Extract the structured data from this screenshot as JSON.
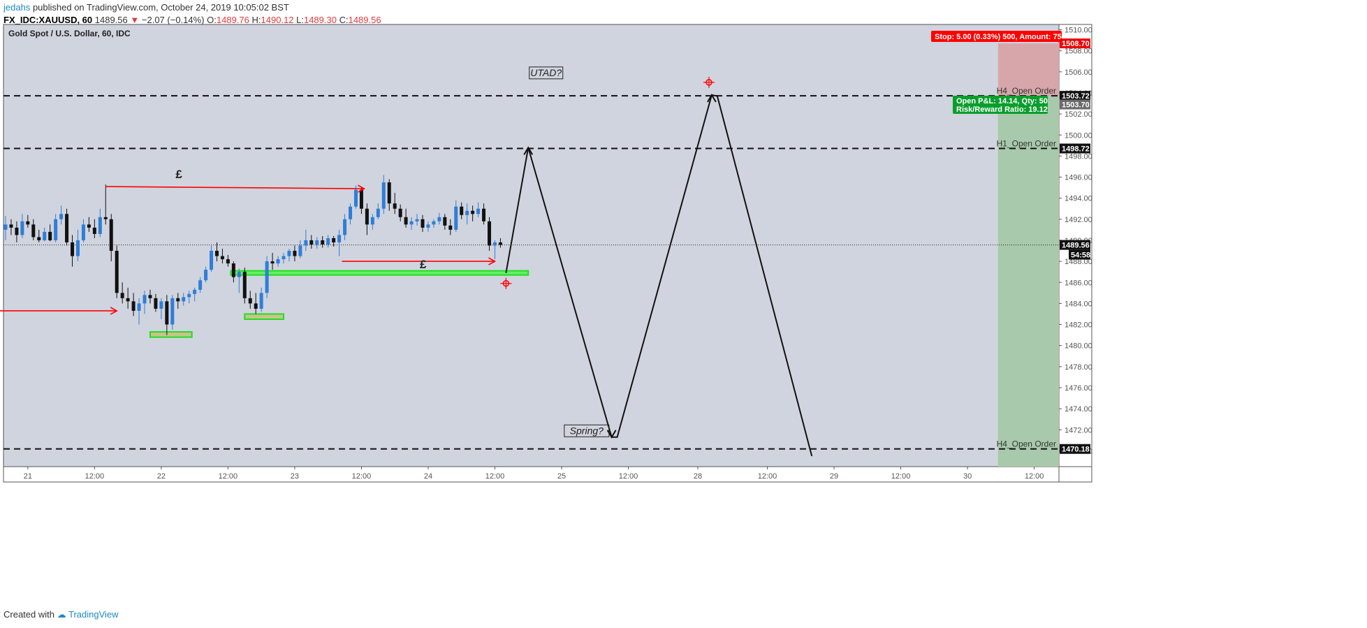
{
  "header": {
    "author": "jedahs",
    "published": "published on TradingView.com, October 24, 2019 10:05:02 BST",
    "ticker": "FX_IDC:XAUUSD, 60",
    "price": "1489.56",
    "change_arrow": "▼",
    "change": "−2.07 (−0.14%)",
    "o_label": "O:",
    "o_value": "1489.76",
    "h_label": "H:",
    "h_value": "1490.12",
    "l_label": "L:",
    "l_value": "1489.30",
    "c_label": "C:",
    "c_value": "1489.56"
  },
  "footer": {
    "created_with": "Created with",
    "brand": "TradingView"
  },
  "chart_data": {
    "type": "candlestick",
    "title": "Gold Spot / U.S. Dollar, 60, IDC",
    "y_range": [
      1468.5,
      1510.5
    ],
    "y_ticks": [
      "1510.00",
      "1508.00",
      "1506.00",
      "1504.00",
      "1502.00",
      "1500.00",
      "1498.00",
      "1496.00",
      "1494.00",
      "1492.00",
      "1490.00",
      "1488.00",
      "1486.00",
      "1484.00",
      "1482.00",
      "1480.00",
      "1478.00",
      "1476.00",
      "1474.00",
      "1472.00",
      "1470.00"
    ],
    "x_ticks": [
      {
        "label": "21",
        "slot": 4
      },
      {
        "label": "12:00",
        "slot": 16
      },
      {
        "label": "22",
        "slot": 28
      },
      {
        "label": "12:00",
        "slot": 40
      },
      {
        "label": "23",
        "slot": 52
      },
      {
        "label": "12:00",
        "slot": 64
      },
      {
        "label": "24",
        "slot": 76
      },
      {
        "label": "12:00",
        "slot": 88
      },
      {
        "label": "25",
        "slot": 100
      },
      {
        "label": "12:00",
        "slot": 112
      },
      {
        "label": "28",
        "slot": 124.5
      },
      {
        "label": "12:00",
        "slot": 137
      },
      {
        "label": "29",
        "slot": 149
      },
      {
        "label": "12:00",
        "slot": 161
      },
      {
        "label": "30",
        "slot": 173
      },
      {
        "label": "12:00",
        "slot": 185
      }
    ],
    "candles": [
      {
        "o": 1491.0,
        "h": 1492.3,
        "l": 1490.0,
        "c": 1491.5
      },
      {
        "o": 1491.5,
        "h": 1492.0,
        "l": 1490.5,
        "c": 1491.2
      },
      {
        "o": 1491.2,
        "h": 1491.8,
        "l": 1489.8,
        "c": 1490.5
      },
      {
        "o": 1490.5,
        "h": 1492.5,
        "l": 1490.2,
        "c": 1491.8
      },
      {
        "o": 1491.8,
        "h": 1492.4,
        "l": 1491.2,
        "c": 1491.5
      },
      {
        "o": 1491.5,
        "h": 1492.0,
        "l": 1490.0,
        "c": 1490.3
      },
      {
        "o": 1490.3,
        "h": 1491.0,
        "l": 1489.8,
        "c": 1490.0
      },
      {
        "o": 1490.0,
        "h": 1491.2,
        "l": 1489.9,
        "c": 1490.8
      },
      {
        "o": 1490.8,
        "h": 1491.5,
        "l": 1489.9,
        "c": 1490.0
      },
      {
        "o": 1490.0,
        "h": 1492.5,
        "l": 1489.8,
        "c": 1492.0
      },
      {
        "o": 1492.0,
        "h": 1493.3,
        "l": 1491.5,
        "c": 1492.5
      },
      {
        "o": 1492.5,
        "h": 1493.0,
        "l": 1489.5,
        "c": 1489.8
      },
      {
        "o": 1489.8,
        "h": 1490.5,
        "l": 1487.5,
        "c": 1488.5
      },
      {
        "o": 1488.5,
        "h": 1491.0,
        "l": 1488.0,
        "c": 1490.0
      },
      {
        "o": 1490.0,
        "h": 1492.0,
        "l": 1489.8,
        "c": 1491.5
      },
      {
        "o": 1491.5,
        "h": 1492.2,
        "l": 1490.8,
        "c": 1491.2
      },
      {
        "o": 1491.2,
        "h": 1492.0,
        "l": 1490.2,
        "c": 1490.6
      },
      {
        "o": 1490.6,
        "h": 1493.0,
        "l": 1490.3,
        "c": 1492.2
      },
      {
        "o": 1492.2,
        "h": 1495.3,
        "l": 1491.5,
        "c": 1492.0
      },
      {
        "o": 1492.0,
        "h": 1492.5,
        "l": 1488.0,
        "c": 1489.0
      },
      {
        "o": 1489.0,
        "h": 1489.5,
        "l": 1484.5,
        "c": 1485.0
      },
      {
        "o": 1485.0,
        "h": 1486.0,
        "l": 1484.0,
        "c": 1484.5
      },
      {
        "o": 1484.5,
        "h": 1485.5,
        "l": 1483.5,
        "c": 1484.2
      },
      {
        "o": 1484.2,
        "h": 1485.0,
        "l": 1482.8,
        "c": 1483.3
      },
      {
        "o": 1483.3,
        "h": 1484.5,
        "l": 1482.0,
        "c": 1484.0
      },
      {
        "o": 1484.0,
        "h": 1485.2,
        "l": 1483.0,
        "c": 1484.8
      },
      {
        "o": 1484.8,
        "h": 1485.3,
        "l": 1484.0,
        "c": 1484.5
      },
      {
        "o": 1484.5,
        "h": 1484.9,
        "l": 1483.2,
        "c": 1483.5
      },
      {
        "o": 1483.5,
        "h": 1484.5,
        "l": 1482.5,
        "c": 1484.2
      },
      {
        "o": 1484.2,
        "h": 1484.8,
        "l": 1481.0,
        "c": 1482.0
      },
      {
        "o": 1482.0,
        "h": 1484.8,
        "l": 1481.5,
        "c": 1484.5
      },
      {
        "o": 1484.5,
        "h": 1485.0,
        "l": 1483.5,
        "c": 1484.2
      },
      {
        "o": 1484.2,
        "h": 1485.0,
        "l": 1483.8,
        "c": 1484.6
      },
      {
        "o": 1484.6,
        "h": 1485.2,
        "l": 1484.0,
        "c": 1484.9
      },
      {
        "o": 1484.9,
        "h": 1485.5,
        "l": 1484.2,
        "c": 1485.3
      },
      {
        "o": 1485.3,
        "h": 1486.5,
        "l": 1485.0,
        "c": 1486.2
      },
      {
        "o": 1486.2,
        "h": 1487.5,
        "l": 1486.0,
        "c": 1487.2
      },
      {
        "o": 1487.2,
        "h": 1489.5,
        "l": 1487.0,
        "c": 1489.0
      },
      {
        "o": 1489.0,
        "h": 1489.8,
        "l": 1488.0,
        "c": 1488.5
      },
      {
        "o": 1488.5,
        "h": 1489.2,
        "l": 1487.8,
        "c": 1488.2
      },
      {
        "o": 1488.2,
        "h": 1488.6,
        "l": 1487.5,
        "c": 1487.8
      },
      {
        "o": 1487.8,
        "h": 1488.0,
        "l": 1486.0,
        "c": 1486.5
      },
      {
        "o": 1486.5,
        "h": 1487.3,
        "l": 1485.0,
        "c": 1487.0
      },
      {
        "o": 1487.0,
        "h": 1487.4,
        "l": 1484.0,
        "c": 1484.5
      },
      {
        "o": 1484.5,
        "h": 1485.2,
        "l": 1483.5,
        "c": 1484.0
      },
      {
        "o": 1484.0,
        "h": 1485.0,
        "l": 1483.0,
        "c": 1483.5
      },
      {
        "o": 1483.5,
        "h": 1485.5,
        "l": 1483.2,
        "c": 1485.0
      },
      {
        "o": 1485.0,
        "h": 1488.5,
        "l": 1484.5,
        "c": 1488.0
      },
      {
        "o": 1488.0,
        "h": 1488.8,
        "l": 1487.2,
        "c": 1487.8
      },
      {
        "o": 1487.8,
        "h": 1488.5,
        "l": 1487.5,
        "c": 1488.2
      },
      {
        "o": 1488.2,
        "h": 1488.8,
        "l": 1487.8,
        "c": 1488.5
      },
      {
        "o": 1488.5,
        "h": 1489.2,
        "l": 1488.0,
        "c": 1489.0
      },
      {
        "o": 1489.0,
        "h": 1489.5,
        "l": 1488.0,
        "c": 1488.5
      },
      {
        "o": 1488.5,
        "h": 1490.0,
        "l": 1488.3,
        "c": 1489.5
      },
      {
        "o": 1489.5,
        "h": 1491.0,
        "l": 1489.0,
        "c": 1490.0
      },
      {
        "o": 1490.0,
        "h": 1490.5,
        "l": 1489.2,
        "c": 1489.6
      },
      {
        "o": 1489.6,
        "h": 1490.3,
        "l": 1489.2,
        "c": 1490.0
      },
      {
        "o": 1490.0,
        "h": 1490.4,
        "l": 1489.3,
        "c": 1489.6
      },
      {
        "o": 1489.6,
        "h": 1490.5,
        "l": 1489.3,
        "c": 1490.2
      },
      {
        "o": 1490.2,
        "h": 1490.4,
        "l": 1489.4,
        "c": 1489.8
      },
      {
        "o": 1489.8,
        "h": 1491.0,
        "l": 1488.5,
        "c": 1490.5
      },
      {
        "o": 1490.5,
        "h": 1492.5,
        "l": 1490.0,
        "c": 1492.0
      },
      {
        "o": 1492.0,
        "h": 1493.5,
        "l": 1491.5,
        "c": 1493.2
      },
      {
        "o": 1493.2,
        "h": 1495.2,
        "l": 1493.0,
        "c": 1494.8
      },
      {
        "o": 1494.8,
        "h": 1495.0,
        "l": 1492.5,
        "c": 1493.0
      },
      {
        "o": 1493.0,
        "h": 1493.5,
        "l": 1490.5,
        "c": 1491.5
      },
      {
        "o": 1491.5,
        "h": 1492.5,
        "l": 1491.0,
        "c": 1492.2
      },
      {
        "o": 1492.2,
        "h": 1493.5,
        "l": 1492.0,
        "c": 1493.0
      },
      {
        "o": 1493.0,
        "h": 1496.2,
        "l": 1492.5,
        "c": 1495.5
      },
      {
        "o": 1495.5,
        "h": 1495.8,
        "l": 1492.8,
        "c": 1493.5
      },
      {
        "o": 1493.5,
        "h": 1494.5,
        "l": 1492.5,
        "c": 1493.0
      },
      {
        "o": 1493.0,
        "h": 1493.4,
        "l": 1491.8,
        "c": 1492.2
      },
      {
        "o": 1492.2,
        "h": 1493.0,
        "l": 1491.2,
        "c": 1491.5
      },
      {
        "o": 1491.5,
        "h": 1492.2,
        "l": 1491.0,
        "c": 1491.8
      },
      {
        "o": 1491.8,
        "h": 1492.5,
        "l": 1491.4,
        "c": 1492.0
      },
      {
        "o": 1492.0,
        "h": 1492.4,
        "l": 1490.8,
        "c": 1491.2
      },
      {
        "o": 1491.2,
        "h": 1491.8,
        "l": 1490.8,
        "c": 1491.5
      },
      {
        "o": 1491.5,
        "h": 1492.0,
        "l": 1491.2,
        "c": 1491.8
      },
      {
        "o": 1491.8,
        "h": 1492.6,
        "l": 1491.5,
        "c": 1492.2
      },
      {
        "o": 1492.2,
        "h": 1492.5,
        "l": 1491.0,
        "c": 1491.4
      },
      {
        "o": 1491.4,
        "h": 1492.0,
        "l": 1490.5,
        "c": 1491.0
      },
      {
        "o": 1491.0,
        "h": 1493.8,
        "l": 1490.8,
        "c": 1493.2
      },
      {
        "o": 1493.2,
        "h": 1493.6,
        "l": 1492.0,
        "c": 1492.4
      },
      {
        "o": 1492.4,
        "h": 1493.5,
        "l": 1491.5,
        "c": 1492.8
      },
      {
        "o": 1492.8,
        "h": 1493.3,
        "l": 1491.8,
        "c": 1492.5
      },
      {
        "o": 1492.5,
        "h": 1493.6,
        "l": 1492.2,
        "c": 1493.0
      },
      {
        "o": 1493.0,
        "h": 1493.5,
        "l": 1491.5,
        "c": 1491.8
      },
      {
        "o": 1491.8,
        "h": 1492.2,
        "l": 1489.0,
        "c": 1489.5
      },
      {
        "o": 1489.5,
        "h": 1490.0,
        "l": 1488.2,
        "c": 1489.8
      },
      {
        "o": 1489.8,
        "h": 1490.2,
        "l": 1489.3,
        "c": 1489.56
      }
    ],
    "current_price": {
      "value": 1489.56,
      "label": "1489.56",
      "countdown": "54:58"
    },
    "price_tags": [
      {
        "label": "1508.70",
        "value": 1508.7,
        "bg": "#f00000",
        "fg": "#ffffff"
      },
      {
        "label": "1503.72",
        "value": 1503.72,
        "bg": "#111111",
        "fg": "#ffffff"
      },
      {
        "label": "1503.70",
        "value": 1502.9,
        "bg": "#6b6b6b",
        "fg": "#ffffff"
      },
      {
        "label": "1498.72",
        "value": 1498.72,
        "bg": "#111111",
        "fg": "#ffffff"
      },
      {
        "label": "1470.18",
        "value": 1470.18,
        "bg": "#111111",
        "fg": "#ffffff"
      }
    ],
    "horizontal_levels": [
      {
        "label": "H4_Open Order",
        "value": 1503.72
      },
      {
        "label": "H1_Open Order",
        "value": 1498.72
      },
      {
        "label": "H4_Open Order",
        "value": 1470.18
      }
    ],
    "position": {
      "stop_banner": "Stop: 5.00 (0.33%) 500, Amount: 75",
      "pnl_line1": "Open P&L: 14.14, Qty: 50",
      "pnl_line2": "Risk/Reward Ratio: 19.12",
      "entry": 1503.72,
      "stop": 1508.7,
      "target": 1468.5,
      "start_slot": 178.5
    },
    "notes": {
      "utad": "UTAD?",
      "spring": "Spring?",
      "pound": "£"
    },
    "projection_path": [
      {
        "slot": 90,
        "v": 1486.9
      },
      {
        "slot": 94,
        "v": 1498.8
      },
      {
        "slot": 109,
        "v": 1471.3
      },
      {
        "slot": 110,
        "v": 1471.3
      },
      {
        "slot": 127,
        "v": 1503.8
      },
      {
        "slot": 128,
        "v": 1503.7
      },
      {
        "slot": 145,
        "v": 1469.5
      }
    ],
    "red_arrows": [
      {
        "x1": -1,
        "v1": 1483.3,
        "x2": 20,
        "v2": 1483.3
      },
      {
        "x1": 18,
        "v1": 1495.1,
        "x2": 64.5,
        "v2": 1494.9
      },
      {
        "x1": 60.5,
        "v1": 1488.0,
        "x2": 88,
        "v2": 1488.0
      }
    ],
    "zones": [
      {
        "x1": 40.5,
        "x2": 94,
        "top": 1487.1,
        "bottom": 1486.7,
        "kind": "line-zone"
      },
      {
        "x1": 26,
        "x2": 33.5,
        "top": 1481.3,
        "bottom": 1480.8,
        "kind": "box"
      },
      {
        "x1": 43,
        "x2": 50,
        "top": 1483.0,
        "bottom": 1482.5,
        "kind": "box"
      }
    ],
    "targets_marks": [
      {
        "slot": 90,
        "v": 1485.9
      },
      {
        "slot": 126.5,
        "v": 1505.0
      }
    ],
    "colors": {
      "bull": "#2f7ed8",
      "bear": "#111111",
      "background": "#d0d4de",
      "red": "#ff0000",
      "green_zone": "#a8c9ab",
      "red_zone": "#d7a6ab",
      "zone_green": "#66ee66"
    }
  }
}
